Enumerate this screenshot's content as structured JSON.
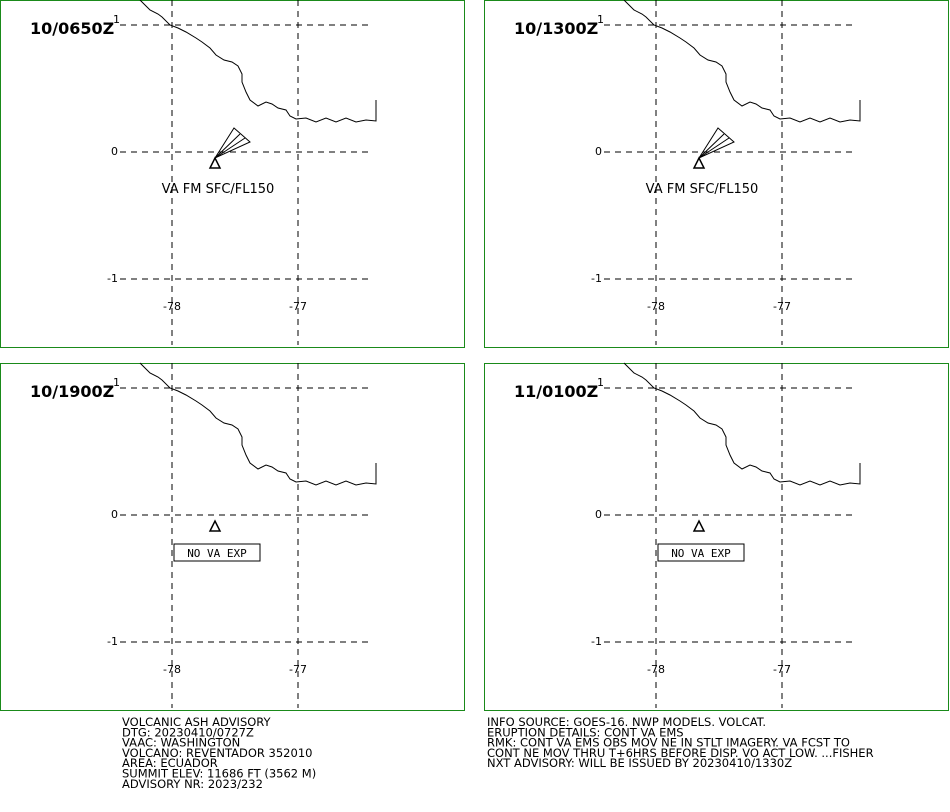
{
  "panels": [
    {
      "time": "10/0650Z",
      "label": "VA FM SFC/FL150"
    },
    {
      "time": "10/1300Z",
      "label": "VA FM SFC/FL150"
    },
    {
      "time": "10/1900Z",
      "label": "NO VA EXP"
    },
    {
      "time": "11/0100Z",
      "label": "NO VA EXP"
    }
  ],
  "lat_labels": [
    "1",
    "0",
    "-1"
  ],
  "lon_labels": [
    "-78",
    "-77"
  ],
  "advisory_left": [
    "VOLCANIC ASH ADVISORY",
    "DTG: 20230410/0727Z",
    "VAAC: WASHINGTON",
    "VOLCANO: REVENTADOR 352010",
    "AREA: ECUADOR",
    "SUMMIT ELEV: 11686 FT (3562 M)",
    "ADVISORY NR: 2023/232"
  ],
  "advisory_right": [
    "INFO SOURCE: GOES-16. NWP MODELS. VOLCAT.",
    "ERUPTION DETAILS: CONT VA EMS",
    "RMK: CONT VA EMS OBS MOV NE IN STLT IMAGERY. VA FCST TO",
    "CONT NE MOV THRU T+6HRS BEFORE DISP. VO ACT LOW. ...FISHER",
    "NXT ADVISORY: WILL BE ISSUED BY 20230410/1330Z"
  ]
}
